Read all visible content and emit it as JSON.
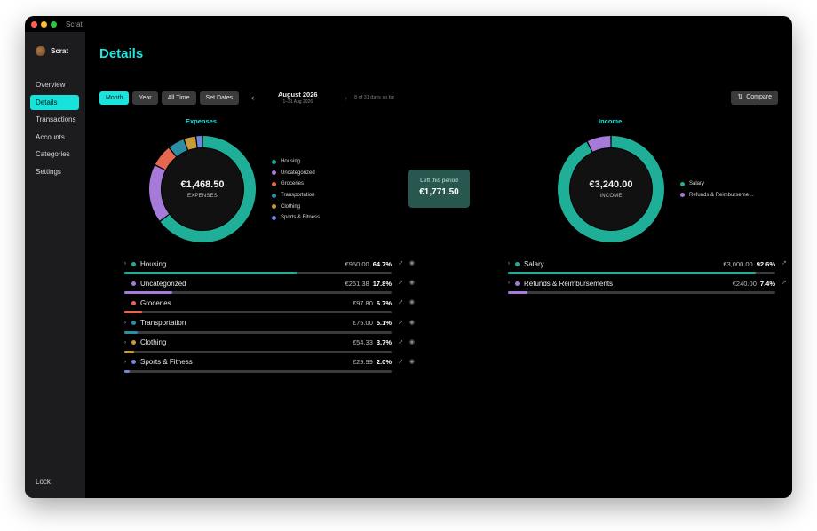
{
  "window": {
    "title": "Scrat"
  },
  "sidebar": {
    "brand": "Scrat",
    "items": [
      {
        "label": "Overview",
        "active": false
      },
      {
        "label": "Details",
        "active": true
      },
      {
        "label": "Transactions",
        "active": false
      },
      {
        "label": "Accounts",
        "active": false
      },
      {
        "label": "Categories",
        "active": false
      },
      {
        "label": "Settings",
        "active": false
      }
    ],
    "lock": "Lock"
  },
  "page": {
    "title": "Details"
  },
  "toolbar": {
    "ranges": [
      "Month",
      "Year",
      "All Time",
      "Set Dates"
    ],
    "active_range": "Month",
    "prev": "‹",
    "next": "›",
    "period_title": "August 2026",
    "period_sub": "1–31 Aug 2026",
    "days_note": "8 of 31 days so far",
    "compare": "Compare"
  },
  "expenses": {
    "title": "Expenses",
    "total": "€1,468.50",
    "total_label": "EXPENSES",
    "categories": [
      {
        "name": "Housing",
        "amount": "€950.00",
        "pct": "64.7%",
        "value": 64.7,
        "color": "#1fae98",
        "expandable": true
      },
      {
        "name": "Uncategorized",
        "amount": "€261.38",
        "pct": "17.8%",
        "value": 17.8,
        "color": "#a67ad8",
        "expandable": false
      },
      {
        "name": "Groceries",
        "amount": "€97.80",
        "pct": "6.7%",
        "value": 6.7,
        "color": "#e5674f",
        "expandable": false
      },
      {
        "name": "Transportation",
        "amount": "€75.00",
        "pct": "5.1%",
        "value": 5.1,
        "color": "#2a8fa6",
        "expandable": true
      },
      {
        "name": "Clothing",
        "amount": "€54.33",
        "pct": "3.7%",
        "value": 3.7,
        "color": "#c79a3a",
        "expandable": true
      },
      {
        "name": "Sports & Fitness",
        "amount": "€29.99",
        "pct": "2.0%",
        "value": 2.0,
        "color": "#6f86e0",
        "expandable": true
      }
    ]
  },
  "left_this_period": {
    "label": "Left this period",
    "amount": "€1,771.50"
  },
  "income": {
    "title": "Income",
    "total": "€3,240.00",
    "total_label": "INCOME",
    "legend": [
      "Salary",
      "Refunds & Reimburseme…"
    ],
    "categories": [
      {
        "name": "Salary",
        "amount": "€3,000.00",
        "pct": "92.6%",
        "value": 92.6,
        "color": "#1fae98",
        "expandable": true
      },
      {
        "name": "Refunds & Reimbursements",
        "amount": "€240.00",
        "pct": "7.4%",
        "value": 7.4,
        "color": "#a67ad8",
        "expandable": true
      }
    ]
  },
  "icons": {
    "open": "arrow-up-right-icon",
    "visibility": "eye-icon",
    "expand": "chevron-right-icon"
  }
}
